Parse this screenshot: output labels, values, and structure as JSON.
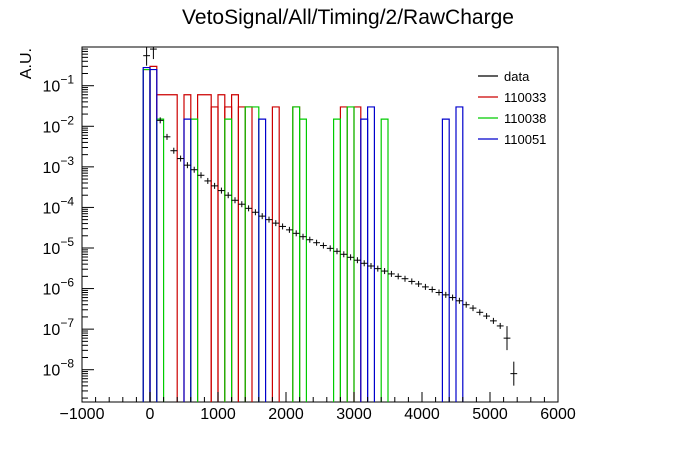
{
  "chart_data": {
    "type": "histogram",
    "title": "VetoSignal/All/Timing/2/RawCharge",
    "xlabel": "",
    "ylabel": "A.U.",
    "xlim": [
      -1000,
      6000
    ],
    "ylim": [
      1.6e-09,
      0.9
    ],
    "log_y": true,
    "grid": false,
    "legend_position": "top-right",
    "x_ticks": [
      -1000,
      0,
      1000,
      2000,
      3000,
      4000,
      5000,
      6000
    ],
    "x_tick_labels": [
      "−1000",
      "0",
      "1000",
      "2000",
      "3000",
      "4000",
      "5000",
      "6000"
    ],
    "y_ticks": [
      {
        "value": 1e-08,
        "mantissa": "10",
        "exp": "−8"
      },
      {
        "value": 1e-07,
        "mantissa": "10",
        "exp": "−7"
      },
      {
        "value": 1e-06,
        "mantissa": "10",
        "exp": "−6"
      },
      {
        "value": 1e-05,
        "mantissa": "10",
        "exp": "−5"
      },
      {
        "value": 0.0001,
        "mantissa": "10",
        "exp": "−4"
      },
      {
        "value": 0.001,
        "mantissa": "10",
        "exp": "−3"
      },
      {
        "value": 0.01,
        "mantissa": "10",
        "exp": "−2"
      },
      {
        "value": 0.1,
        "mantissa": "10",
        "exp": "−1"
      }
    ],
    "series": [
      {
        "name": "data",
        "style": "points",
        "color": "#000000",
        "bin_width": 100,
        "points": [
          {
            "x": -50,
            "y": 0.55
          },
          {
            "x": 50,
            "y": 0.8
          },
          {
            "x": 150,
            "y": 0.014
          },
          {
            "x": 250,
            "y": 0.0055
          },
          {
            "x": 350,
            "y": 0.0025
          },
          {
            "x": 450,
            "y": 0.0016
          },
          {
            "x": 550,
            "y": 0.0011
          },
          {
            "x": 650,
            "y": 0.00085
          },
          {
            "x": 750,
            "y": 0.00062
          },
          {
            "x": 850,
            "y": 0.00045
          },
          {
            "x": 950,
            "y": 0.00034
          },
          {
            "x": 1050,
            "y": 0.00026
          },
          {
            "x": 1150,
            "y": 0.0002
          },
          {
            "x": 1250,
            "y": 0.00015
          },
          {
            "x": 1350,
            "y": 0.00012
          },
          {
            "x": 1450,
            "y": 9.5e-05
          },
          {
            "x": 1550,
            "y": 7.6e-05
          },
          {
            "x": 1650,
            "y": 6.1e-05
          },
          {
            "x": 1750,
            "y": 5e-05
          },
          {
            "x": 1850,
            "y": 4.1e-05
          },
          {
            "x": 1950,
            "y": 3.4e-05
          },
          {
            "x": 2050,
            "y": 2.8e-05
          },
          {
            "x": 2150,
            "y": 2.3e-05
          },
          {
            "x": 2250,
            "y": 1.9e-05
          },
          {
            "x": 2350,
            "y": 1.6e-05
          },
          {
            "x": 2450,
            "y": 1.35e-05
          },
          {
            "x": 2550,
            "y": 1.15e-05
          },
          {
            "x": 2650,
            "y": 9.8e-06
          },
          {
            "x": 2750,
            "y": 8.3e-06
          },
          {
            "x": 2850,
            "y": 7e-06
          },
          {
            "x": 2950,
            "y": 5.9e-06
          },
          {
            "x": 3050,
            "y": 5e-06
          },
          {
            "x": 3150,
            "y": 4.2e-06
          },
          {
            "x": 3250,
            "y": 3.6e-06
          },
          {
            "x": 3350,
            "y": 3.1e-06
          },
          {
            "x": 3450,
            "y": 2.7e-06
          },
          {
            "x": 3550,
            "y": 2.3e-06
          },
          {
            "x": 3650,
            "y": 2e-06
          },
          {
            "x": 3750,
            "y": 1.75e-06
          },
          {
            "x": 3850,
            "y": 1.5e-06
          },
          {
            "x": 3950,
            "y": 1.3e-06
          },
          {
            "x": 4050,
            "y": 1.1e-06
          },
          {
            "x": 4150,
            "y": 9.5e-07
          },
          {
            "x": 4250,
            "y": 8e-07
          },
          {
            "x": 4350,
            "y": 7e-07
          },
          {
            "x": 4450,
            "y": 6e-07
          },
          {
            "x": 4550,
            "y": 5e-07
          },
          {
            "x": 4650,
            "y": 4e-07
          },
          {
            "x": 4750,
            "y": 3.3e-07
          },
          {
            "x": 4850,
            "y": 2.6e-07
          },
          {
            "x": 4950,
            "y": 2.1e-07
          },
          {
            "x": 5050,
            "y": 1.6e-07
          },
          {
            "x": 5150,
            "y": 1.2e-07
          },
          {
            "x": 5250,
            "y": 6e-08
          },
          {
            "x": 5350,
            "y": 8e-09
          }
        ]
      },
      {
        "name": "110033",
        "style": "step",
        "color": "#cc0000",
        "bins": [
          {
            "x0": -100,
            "x1": 0,
            "y": 0.25
          },
          {
            "x0": 0,
            "x1": 100,
            "y": 0.3
          },
          {
            "x0": 100,
            "x1": 400,
            "y": 0.06
          },
          {
            "x0": 500,
            "x1": 600,
            "y": 0.06
          },
          {
            "x0": 700,
            "x1": 900,
            "y": 0.06
          },
          {
            "x0": 900,
            "x1": 1000,
            "y": 0.03
          },
          {
            "x0": 1000,
            "x1": 1100,
            "y": 0.06
          },
          {
            "x0": 1100,
            "x1": 1200,
            "y": 0.03
          },
          {
            "x0": 1200,
            "x1": 1300,
            "y": 0.06
          },
          {
            "x0": 1300,
            "x1": 1400,
            "y": 0.03
          },
          {
            "x0": 1400,
            "x1": 1500,
            "y": 0.03
          },
          {
            "x0": 1800,
            "x1": 1900,
            "y": 0.03
          },
          {
            "x0": 2100,
            "x1": 2200,
            "y": 0.03
          },
          {
            "x0": 2800,
            "x1": 2900,
            "y": 0.03
          },
          {
            "x0": 3000,
            "x1": 3100,
            "y": 0.03
          }
        ]
      },
      {
        "name": "110038",
        "style": "step",
        "color": "#00cc00",
        "bins": [
          {
            "x0": -100,
            "x1": 0,
            "y": 0.25
          },
          {
            "x0": 100,
            "x1": 200,
            "y": 0.015
          },
          {
            "x0": 600,
            "x1": 700,
            "y": 0.015
          },
          {
            "x0": 1100,
            "x1": 1200,
            "y": 0.015
          },
          {
            "x0": 1400,
            "x1": 1600,
            "y": 0.03
          },
          {
            "x0": 2100,
            "x1": 2200,
            "y": 0.03
          },
          {
            "x0": 2200,
            "x1": 2300,
            "y": 0.015
          },
          {
            "x0": 2700,
            "x1": 2800,
            "y": 0.015
          },
          {
            "x0": 2900,
            "x1": 3000,
            "y": 0.03
          },
          {
            "x0": 3400,
            "x1": 3500,
            "y": 0.015
          }
        ]
      },
      {
        "name": "110051",
        "style": "step",
        "color": "#0000cc",
        "bins": [
          {
            "x0": -100,
            "x1": 0,
            "y": 0.28
          },
          {
            "x0": 0,
            "x1": 100,
            "y": 0.25
          },
          {
            "x0": 500,
            "x1": 600,
            "y": 0.015
          },
          {
            "x0": 1600,
            "x1": 1700,
            "y": 0.015
          },
          {
            "x0": 3100,
            "x1": 3200,
            "y": 0.015
          },
          {
            "x0": 3200,
            "x1": 3300,
            "y": 0.03
          },
          {
            "x0": 4300,
            "x1": 4400,
            "y": 0.015
          },
          {
            "x0": 4500,
            "x1": 4600,
            "y": 0.03
          }
        ]
      }
    ]
  }
}
